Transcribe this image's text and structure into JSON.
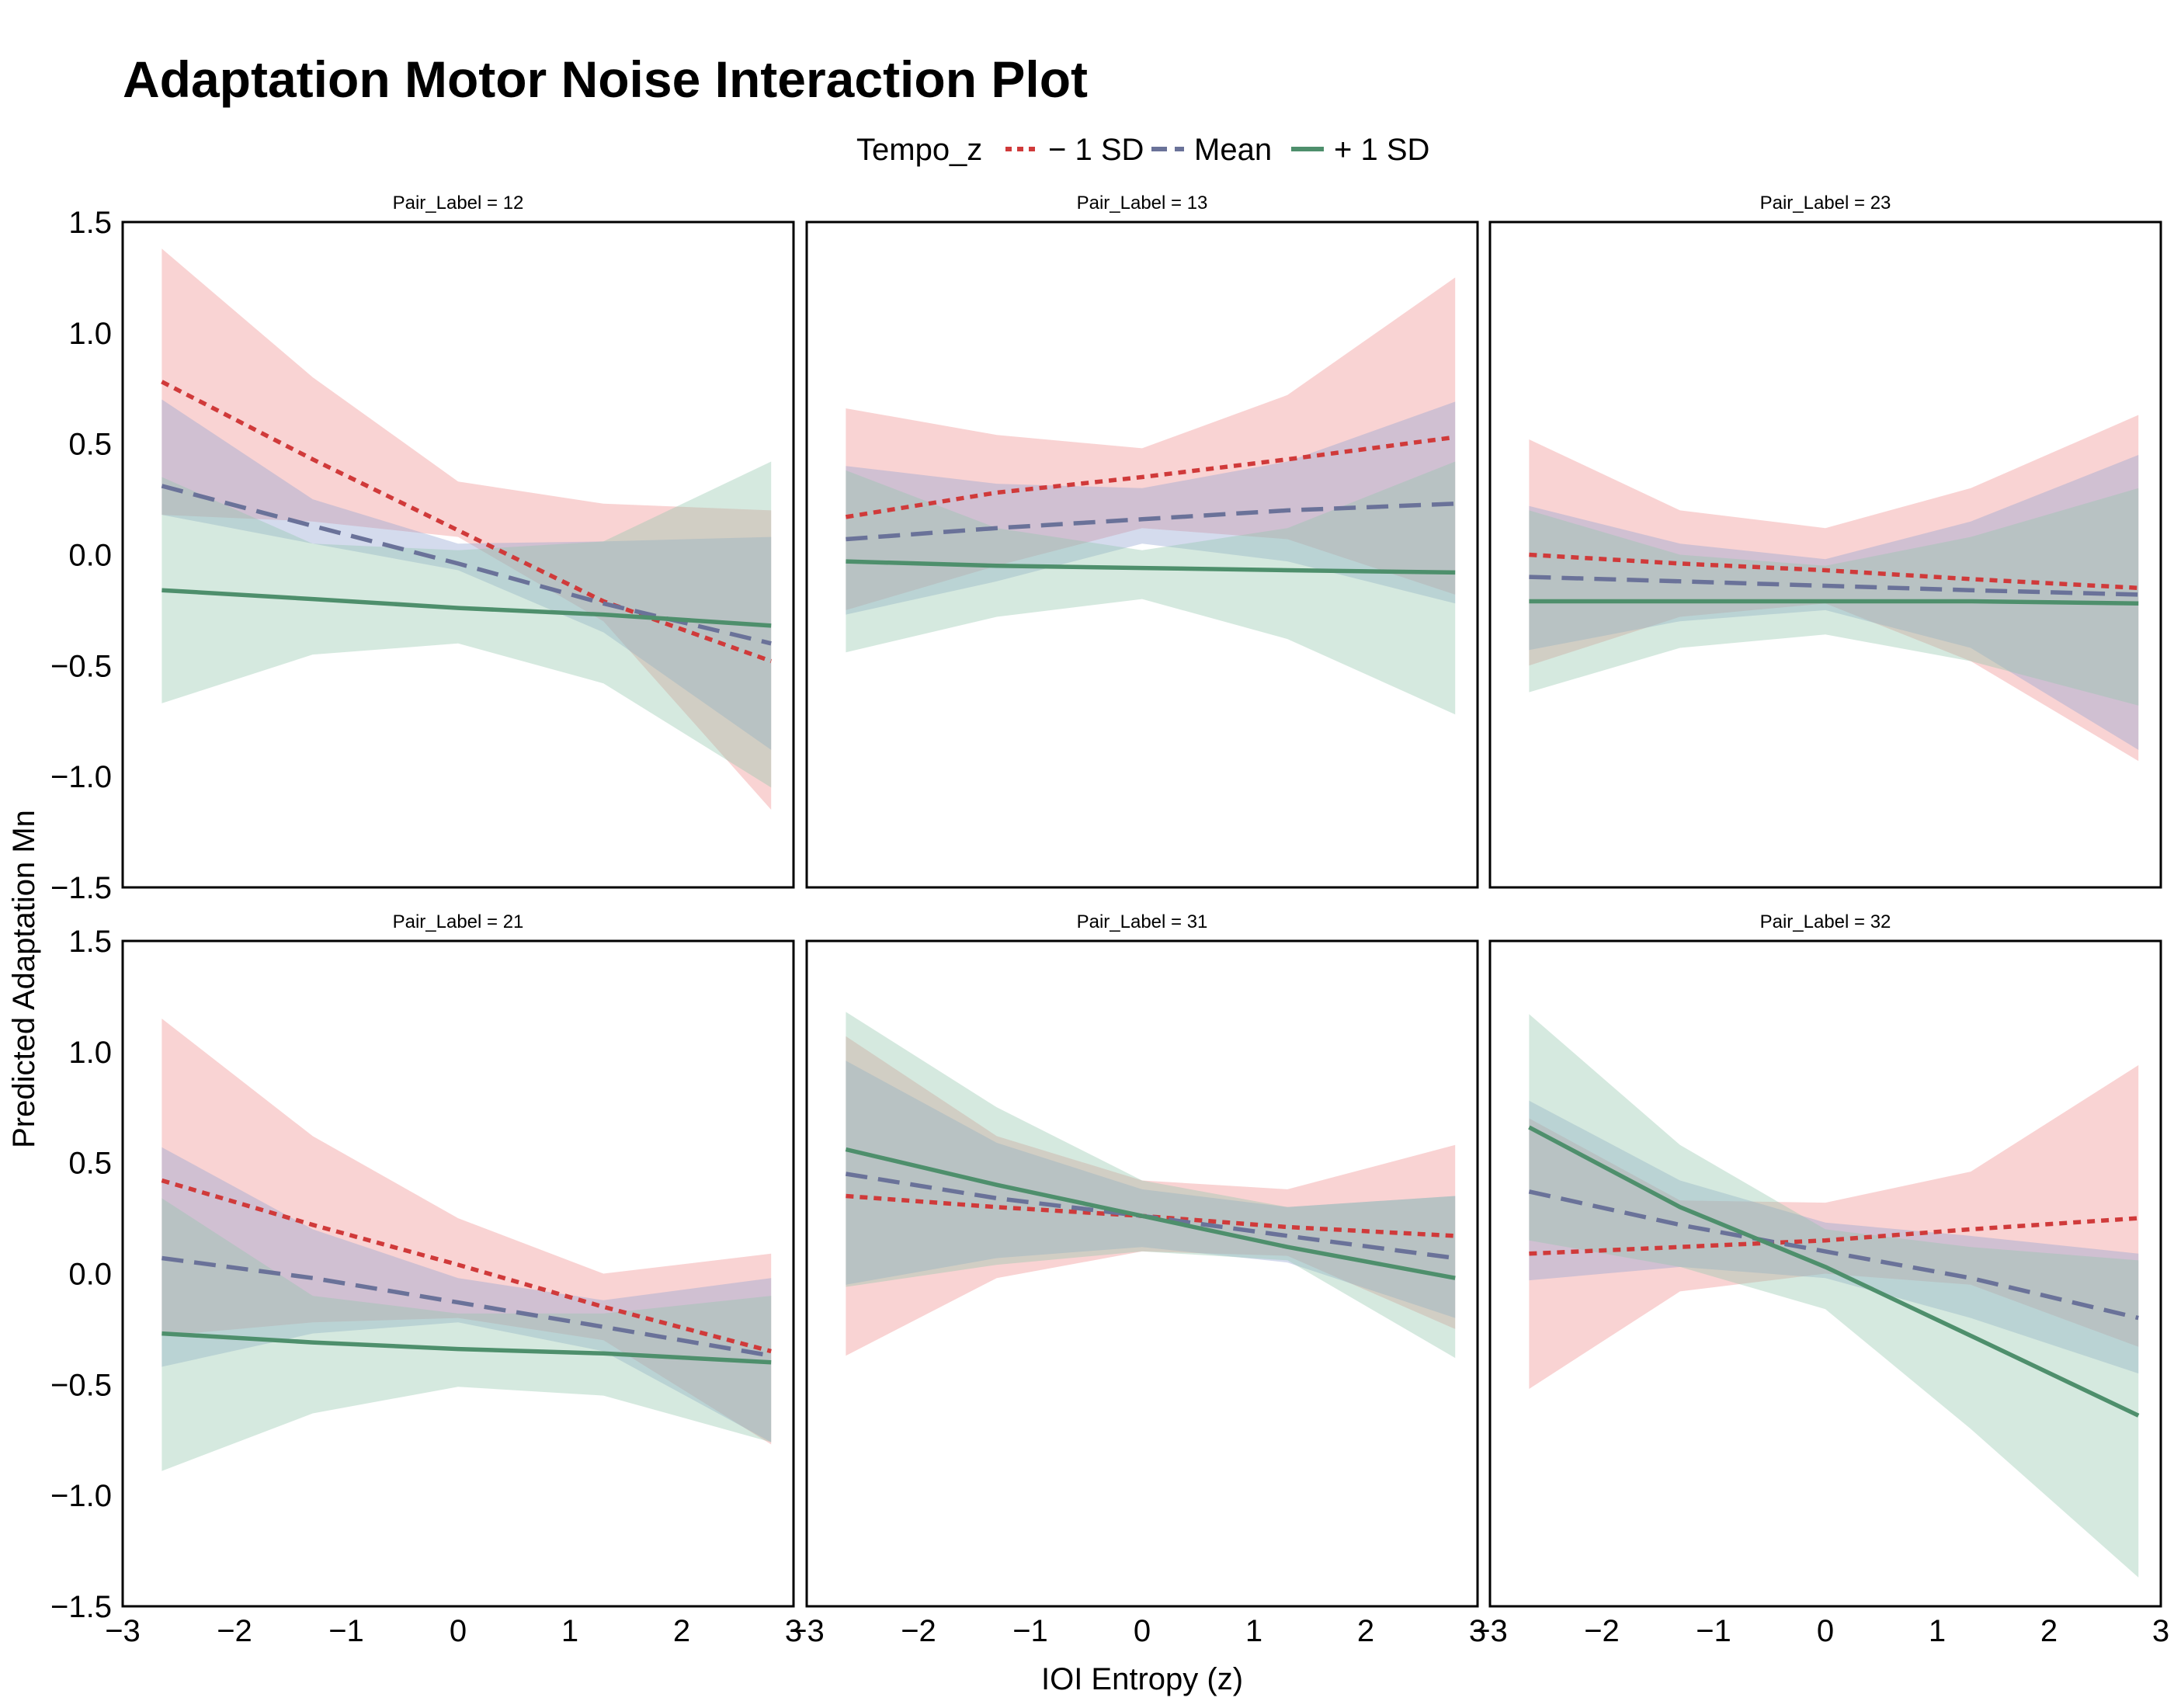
{
  "chart_data": {
    "type": "line",
    "title": "Adaptation Motor Noise Interaction Plot",
    "xlabel": "IOI Entropy (z)",
    "ylabel": "Predicted Adaptation Mn",
    "xlim": [
      -3,
      3
    ],
    "ylim": [
      -1.5,
      1.5
    ],
    "x_ticks": [
      -3,
      -2,
      -1,
      0,
      1,
      2,
      3
    ],
    "y_ticks": [
      -1.5,
      -1.0,
      -0.5,
      0.0,
      0.5,
      1.0,
      1.5
    ],
    "x_tick_labels": [
      "−3",
      "−2",
      "−1",
      "0",
      "1",
      "2",
      "3"
    ],
    "y_tick_labels": [
      "−1.5",
      "−1.0",
      "−0.5",
      "0.0",
      "0.5",
      "1.0",
      "1.5"
    ],
    "grid": false,
    "legend": {
      "title": "Tempo_z",
      "placement": "top-center",
      "entries": [
        "− 1 SD",
        "Mean",
        "+ 1 SD"
      ]
    },
    "series_styles": [
      {
        "name": "− 1 SD",
        "color": "#d03a3a",
        "band_color": "#f08c8c",
        "dash": "dotted"
      },
      {
        "name": "Mean",
        "color": "#6a7299",
        "band_color": "#8fa0d0",
        "dash": "dashed"
      },
      {
        "name": "+ 1 SD",
        "color": "#4e8f6c",
        "band_color": "#90c4aa",
        "dash": "solid"
      }
    ],
    "panels": [
      {
        "label": "Pair_Label = 12",
        "x": [
          -2.65,
          -1.3,
          0,
          1.3,
          2.8
        ],
        "series": [
          {
            "name": "− 1 SD",
            "values": [
              0.78,
              0.43,
              0.11,
              -0.21,
              -0.48
            ],
            "lower": [
              0.18,
              0.15,
              0.08,
              -0.3,
              -1.15
            ],
            "upper": [
              1.38,
              0.8,
              0.33,
              0.23,
              0.2
            ]
          },
          {
            "name": "Mean",
            "values": [
              0.31,
              0.13,
              -0.04,
              -0.22,
              -0.4
            ],
            "lower": [
              0.18,
              0.05,
              -0.07,
              -0.35,
              -0.88
            ],
            "upper": [
              0.7,
              0.25,
              0.05,
              0.06,
              0.08
            ]
          },
          {
            "name": "+ 1 SD",
            "values": [
              -0.16,
              -0.2,
              -0.24,
              -0.27,
              -0.32
            ],
            "lower": [
              -0.67,
              -0.45,
              -0.4,
              -0.58,
              -1.05
            ],
            "upper": [
              0.35,
              0.05,
              0.02,
              0.06,
              0.42
            ]
          }
        ]
      },
      {
        "label": "Pair_Label = 13",
        "x": [
          -2.65,
          -1.3,
          0,
          1.3,
          2.8
        ],
        "series": [
          {
            "name": "− 1 SD",
            "values": [
              0.17,
              0.28,
              0.35,
              0.43,
              0.53
            ],
            "lower": [
              -0.25,
              -0.05,
              0.12,
              0.07,
              -0.18
            ],
            "upper": [
              0.66,
              0.54,
              0.48,
              0.72,
              1.25
            ]
          },
          {
            "name": "Mean",
            "values": [
              0.07,
              0.12,
              0.16,
              0.2,
              0.23
            ],
            "lower": [
              -0.27,
              -0.12,
              0.05,
              -0.03,
              -0.22
            ],
            "upper": [
              0.4,
              0.32,
              0.3,
              0.42,
              0.69
            ]
          },
          {
            "name": "+ 1 SD",
            "values": [
              -0.03,
              -0.05,
              -0.06,
              -0.07,
              -0.08
            ],
            "lower": [
              -0.44,
              -0.28,
              -0.2,
              -0.38,
              -0.72
            ],
            "upper": [
              0.38,
              0.12,
              0.02,
              0.12,
              0.42
            ]
          }
        ]
      },
      {
        "label": "Pair_Label = 23",
        "x": [
          -2.65,
          -1.3,
          0,
          1.3,
          2.8
        ],
        "series": [
          {
            "name": "− 1 SD",
            "values": [
              0.0,
              -0.04,
              -0.07,
              -0.11,
              -0.15
            ],
            "lower": [
              -0.5,
              -0.28,
              -0.22,
              -0.48,
              -0.93
            ],
            "upper": [
              0.52,
              0.2,
              0.12,
              0.3,
              0.63
            ]
          },
          {
            "name": "Mean",
            "values": [
              -0.1,
              -0.12,
              -0.14,
              -0.16,
              -0.18
            ],
            "lower": [
              -0.43,
              -0.3,
              -0.25,
              -0.42,
              -0.88
            ],
            "upper": [
              0.22,
              0.05,
              -0.02,
              0.15,
              0.45
            ]
          },
          {
            "name": "+ 1 SD",
            "values": [
              -0.21,
              -0.21,
              -0.21,
              -0.21,
              -0.22
            ],
            "lower": [
              -0.62,
              -0.42,
              -0.36,
              -0.48,
              -0.68
            ],
            "upper": [
              0.2,
              0.0,
              -0.05,
              0.08,
              0.3
            ]
          }
        ]
      },
      {
        "label": "Pair_Label = 21",
        "x": [
          -2.65,
          -1.3,
          0,
          1.3,
          2.8
        ],
        "series": [
          {
            "name": "− 1 SD",
            "values": [
              0.42,
              0.22,
              0.04,
              -0.15,
              -0.35
            ],
            "lower": [
              -0.28,
              -0.22,
              -0.2,
              -0.3,
              -0.77
            ],
            "upper": [
              1.15,
              0.62,
              0.25,
              0.0,
              0.09
            ]
          },
          {
            "name": "Mean",
            "values": [
              0.07,
              -0.02,
              -0.13,
              -0.24,
              -0.37
            ],
            "lower": [
              -0.42,
              -0.27,
              -0.22,
              -0.35,
              -0.76
            ],
            "upper": [
              0.57,
              0.2,
              -0.02,
              -0.12,
              -0.02
            ]
          },
          {
            "name": "+ 1 SD",
            "values": [
              -0.27,
              -0.31,
              -0.34,
              -0.36,
              -0.4
            ],
            "lower": [
              -0.89,
              -0.63,
              -0.51,
              -0.55,
              -0.76
            ],
            "upper": [
              0.34,
              -0.1,
              -0.18,
              -0.18,
              -0.1
            ]
          }
        ]
      },
      {
        "label": "Pair_Label = 31",
        "x": [
          -2.65,
          -1.3,
          0,
          1.3,
          2.8
        ],
        "series": [
          {
            "name": "− 1 SD",
            "values": [
              0.35,
              0.3,
              0.26,
              0.21,
              0.17
            ],
            "lower": [
              -0.37,
              -0.02,
              0.1,
              0.08,
              -0.25
            ],
            "upper": [
              1.07,
              0.62,
              0.42,
              0.38,
              0.58
            ]
          },
          {
            "name": "Mean",
            "values": [
              0.45,
              0.34,
              0.26,
              0.17,
              0.07
            ],
            "lower": [
              -0.05,
              0.07,
              0.12,
              0.05,
              -0.2
            ],
            "upper": [
              0.96,
              0.59,
              0.38,
              0.3,
              0.35
            ]
          },
          {
            "name": "+ 1 SD",
            "values": [
              0.56,
              0.4,
              0.26,
              0.12,
              -0.02
            ],
            "lower": [
              -0.06,
              0.04,
              0.1,
              0.06,
              -0.38
            ],
            "upper": [
              1.18,
              0.75,
              0.42,
              0.3,
              0.35
            ]
          }
        ]
      },
      {
        "label": "Pair_Label = 32",
        "x": [
          -2.65,
          -1.3,
          0,
          1.3,
          2.8
        ],
        "series": [
          {
            "name": "− 1 SD",
            "values": [
              0.09,
              0.12,
              0.15,
              0.2,
              0.25
            ],
            "lower": [
              -0.52,
              -0.08,
              0.0,
              -0.05,
              -0.33
            ],
            "upper": [
              0.7,
              0.33,
              0.32,
              0.46,
              0.94
            ]
          },
          {
            "name": "Mean",
            "values": [
              0.37,
              0.22,
              0.1,
              -0.02,
              -0.2
            ],
            "lower": [
              -0.03,
              0.03,
              -0.02,
              -0.2,
              -0.45
            ],
            "upper": [
              0.78,
              0.42,
              0.23,
              0.17,
              0.09
            ]
          },
          {
            "name": "+ 1 SD",
            "values": [
              0.66,
              0.3,
              0.03,
              -0.28,
              -0.64
            ],
            "lower": [
              0.15,
              0.03,
              -0.16,
              -0.7,
              -1.37
            ],
            "upper": [
              1.17,
              0.58,
              0.2,
              0.12,
              0.06
            ]
          }
        ]
      }
    ]
  }
}
